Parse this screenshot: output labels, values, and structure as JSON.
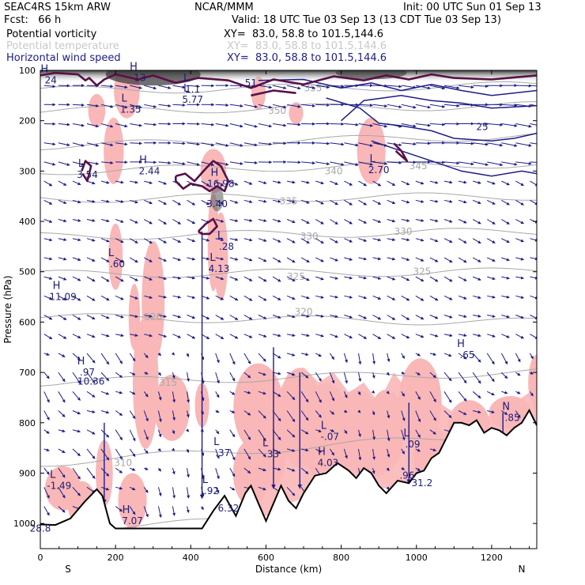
{
  "header": {
    "model": "SEAC4RS 15km ARW",
    "forecast": "Fcst:   66 h",
    "institution": "NCAR/MMM",
    "init": "Init: 00 UTC Sun 01 Sep 13",
    "valid": "Valid: 18 UTC Tue 03 Sep 13 (13 CDT Tue 03 Sep 13)",
    "fields": [
      {
        "name": "Potential vorticity",
        "xy": "XY=  83.0, 58.8 to 101.5,144.6",
        "color": "#000000"
      },
      {
        "name": "Potential temperature",
        "xy": "XY=  83.0, 58.8 to 101.5,144.6",
        "color": "#c8c8c8"
      },
      {
        "name": "Horizontal wind speed",
        "xy": "XY=  83.0, 58.8 to 101.5,144.6",
        "color": "#1c1c8a"
      }
    ]
  },
  "chart_data": {
    "type": "cross-section",
    "xlabel": "Distance (km)",
    "ylabel": "Pressure (hPa)",
    "xlim": [
      0,
      1320
    ],
    "ylim": [
      1050,
      100
    ],
    "x_ticks": [
      "0",
      "200",
      "400",
      "600",
      "800",
      "1000",
      "1200"
    ],
    "y_ticks": [
      "100",
      "200",
      "300",
      "400",
      "500",
      "600",
      "700",
      "800",
      "900",
      "1000"
    ],
    "x_end_labels": {
      "left": "S",
      "right": "N"
    },
    "colors": {
      "pv_positive": "#f9b7b7",
      "pv_contour": "#5a1048",
      "wind": "#1c1c8a",
      "theta": "#a8a8a8",
      "shade": "#555555"
    },
    "theta_contours": [
      {
        "label": "310",
        "x": 220,
        "p": 880
      },
      {
        "label": "315",
        "x": 340,
        "p": 720
      },
      {
        "label": "320",
        "x": 300,
        "p": 590
      },
      {
        "label": "320",
        "x": 700,
        "p": 580
      },
      {
        "label": "325",
        "x": 680,
        "p": 510
      },
      {
        "label": "325",
        "x": 1015,
        "p": 500
      },
      {
        "label": "330",
        "x": 715,
        "p": 430
      },
      {
        "label": "330",
        "x": 965,
        "p": 420
      },
      {
        "label": "335",
        "x": 660,
        "p": 360
      },
      {
        "label": "340",
        "x": 780,
        "p": 300
      },
      {
        "label": "345",
        "x": 1005,
        "p": 290
      },
      {
        "label": "350",
        "x": 630,
        "p": 180
      },
      {
        "label": "355",
        "x": 725,
        "p": 135
      },
      {
        "label": "305",
        "x": 20,
        "p": 1020
      },
      {
        "label": "305",
        "x": 1290,
        "p": 830
      }
    ],
    "extrema": [
      {
        "kind": "H",
        "value": "24",
        "x": 28,
        "p": 120
      },
      {
        "kind": "H",
        "value": "13",
        "x": 265,
        "p": 115
      },
      {
        "kind": "L",
        "value": "1.1",
        "x": 405,
        "p": 138
      },
      {
        "kind": "L",
        "value": "5.77",
        "x": 405,
        "p": 158
      },
      {
        "kind": "L",
        "value": "1.35",
        "x": 240,
        "p": 178
      },
      {
        "kind": "",
        "value": "51",
        "x": 560,
        "p": 125
      },
      {
        "kind": "",
        "value": "25",
        "x": 1175,
        "p": 212
      },
      {
        "kind": "L",
        "value": "3.54",
        "x": 125,
        "p": 307
      },
      {
        "kind": "H",
        "value": "2.44",
        "x": 290,
        "p": 300
      },
      {
        "kind": "H",
        "value": "16.98",
        "x": 480,
        "p": 325
      },
      {
        "kind": "",
        "value": "3.40",
        "x": 470,
        "p": 365
      },
      {
        "kind": "L",
        "value": "2.70",
        "x": 900,
        "p": 298
      },
      {
        "kind": "L",
        "value": ".28",
        "x": 495,
        "p": 450
      },
      {
        "kind": "L",
        "value": "4.13",
        "x": 475,
        "p": 494
      },
      {
        "kind": "L",
        "value": ".60",
        "x": 205,
        "p": 485
      },
      {
        "kind": "H",
        "value": "11.09",
        "x": 60,
        "p": 550
      },
      {
        "kind": "H",
        "value": ".65",
        "x": 1135,
        "p": 665
      },
      {
        "kind": "H",
        "value": ".97",
        "x": 125,
        "p": 700
      },
      {
        "kind": "",
        "value": "10.36",
        "x": 135,
        "p": 718
      },
      {
        "kind": "N",
        "value": ".85",
        "x": 1255,
        "p": 790
      },
      {
        "kind": "L",
        "value": "-.07",
        "x": 770,
        "p": 828
      },
      {
        "kind": "L",
        "value": ".09",
        "x": 990,
        "p": 843
      },
      {
        "kind": "L",
        "value": ".37",
        "x": 485,
        "p": 860
      },
      {
        "kind": "L",
        "value": ".33",
        "x": 615,
        "p": 862
      },
      {
        "kind": "H",
        "value": "4.03",
        "x": 765,
        "p": 880
      },
      {
        "kind": "",
        "value": ".96",
        "x": 975,
        "p": 905
      },
      {
        "kind": "",
        "value": "31.2",
        "x": 1015,
        "p": 920
      },
      {
        "kind": "L",
        "value": "-1.49",
        "x": 50,
        "p": 925
      },
      {
        "kind": "L",
        "value": ".92",
        "x": 455,
        "p": 935
      },
      {
        "kind": "",
        "value": "6.32",
        "x": 500,
        "p": 970
      },
      {
        "kind": "H",
        "value": "7.07",
        "x": 245,
        "p": 995
      },
      {
        "kind": "",
        "value": "28.8",
        "x": 0,
        "p": 1010
      }
    ]
  }
}
